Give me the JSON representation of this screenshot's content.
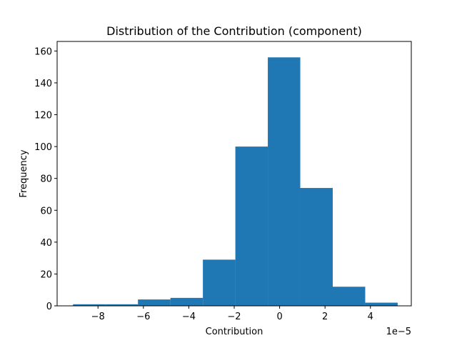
{
  "chart_data": {
    "type": "bar",
    "subtype": "histogram",
    "title": "Distribution of the Contribution (component)",
    "xlabel": "Contribution",
    "ylabel": "Frequency",
    "x_offset_label": "1e−5",
    "x_scale": 1e-05,
    "bin_edges": [
      -9.1,
      -7.67,
      -6.24,
      -4.81,
      -3.38,
      -1.95,
      -0.52,
      0.91,
      2.34,
      3.77,
      5.2
    ],
    "values": [
      1,
      1,
      4,
      5,
      29,
      100,
      156,
      74,
      12,
      2
    ],
    "xlim": [
      -9.8,
      5.8
    ],
    "ylim": [
      0,
      166
    ],
    "xticks": [
      -8,
      -6,
      -4,
      -2,
      0,
      2,
      4
    ],
    "xtick_labels": [
      "−8",
      "−6",
      "−4",
      "−2",
      "0",
      "2",
      "4"
    ],
    "yticks": [
      0,
      20,
      40,
      60,
      80,
      100,
      120,
      140,
      160
    ],
    "ytick_labels": [
      "0",
      "20",
      "40",
      "60",
      "80",
      "100",
      "120",
      "140",
      "160"
    ],
    "bar_color": "#1f77b4",
    "grid": false,
    "legend": "none"
  }
}
